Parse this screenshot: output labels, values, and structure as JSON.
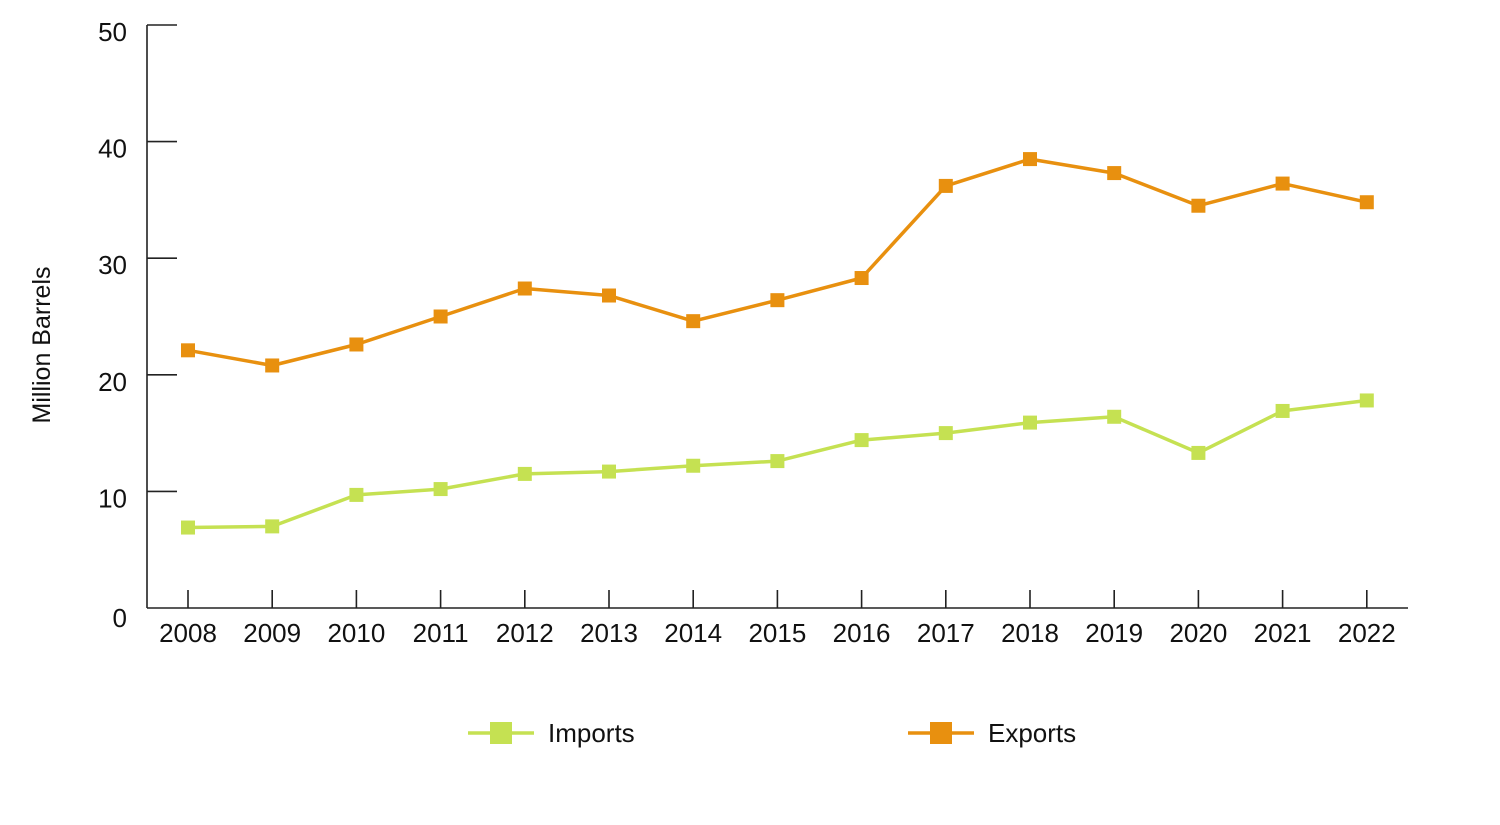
{
  "chart_data": {
    "type": "line",
    "title": "",
    "xlabel": "",
    "ylabel": "Million Barrels",
    "ylim": [
      0,
      50
    ],
    "yticks": [
      0,
      10,
      20,
      30,
      40,
      50
    ],
    "categories": [
      "2008",
      "2009",
      "2010",
      "2011",
      "2012",
      "2013",
      "2014",
      "2015",
      "2016",
      "2017",
      "2018",
      "2019",
      "2020",
      "2021",
      "2022"
    ],
    "grid": false,
    "legend_position": "bottom",
    "series": [
      {
        "name": "Imports",
        "color": "#c5e152",
        "marker": "square",
        "values": [
          6.9,
          7.0,
          9.7,
          10.2,
          11.5,
          11.7,
          12.2,
          12.6,
          14.4,
          15.0,
          15.9,
          16.4,
          13.3,
          16.9,
          17.8
        ]
      },
      {
        "name": "Exports",
        "color": "#e8900f",
        "marker": "square",
        "values": [
          22.1,
          20.8,
          22.6,
          25.0,
          27.4,
          26.8,
          24.6,
          26.4,
          28.3,
          36.2,
          38.5,
          37.3,
          34.5,
          36.4,
          34.8
        ]
      }
    ]
  }
}
